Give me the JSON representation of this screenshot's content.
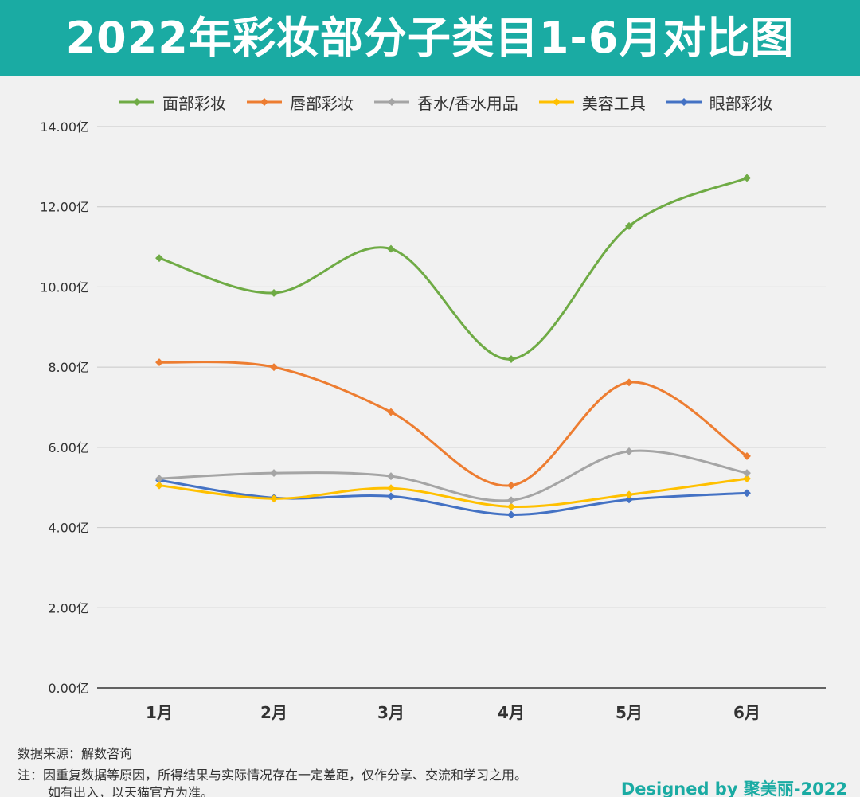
{
  "header": {
    "title": "2022年彩妆部分子类目1-6月对比图"
  },
  "colors": {
    "header_bg": "#1aaba3",
    "accent": "#1aaba3"
  },
  "chart_data": {
    "type": "line",
    "title": "2022年彩妆部分子类目1-6月对比图",
    "xlabel": "",
    "ylabel": "",
    "categories": [
      "1月",
      "2月",
      "3月",
      "4月",
      "5月",
      "6月"
    ],
    "ylim": [
      0,
      14
    ],
    "yticks": [
      0,
      2,
      4,
      6,
      8,
      10,
      12,
      14
    ],
    "ytick_labels": [
      "0.00亿",
      "2.00亿",
      "4.00亿",
      "6.00亿",
      "8.00亿",
      "10.00亿",
      "12.00亿",
      "14.00亿"
    ],
    "grid": true,
    "legend_position": "top",
    "smooth": true,
    "series": [
      {
        "name": "面部彩妆",
        "color": "#6fab45",
        "values": [
          10.72,
          9.85,
          10.95,
          8.2,
          11.52,
          12.72
        ]
      },
      {
        "name": "唇部彩妆",
        "color": "#ed7d31",
        "values": [
          8.12,
          8.0,
          6.88,
          5.05,
          7.62,
          5.78
        ]
      },
      {
        "name": "香水/香水用品",
        "color": "#a5a5a5",
        "values": [
          5.22,
          5.36,
          5.28,
          4.68,
          5.9,
          5.36
        ]
      },
      {
        "name": "美容工具",
        "color": "#ffc000",
        "values": [
          5.05,
          4.72,
          4.98,
          4.52,
          4.82,
          5.22
        ]
      },
      {
        "name": "眼部彩妆",
        "color": "#4472c4",
        "values": [
          5.18,
          4.74,
          4.78,
          4.32,
          4.7,
          4.86
        ]
      }
    ]
  },
  "footer": {
    "source": "数据来源：解数咨询",
    "note1": "注：因重复数据等原因，所得结果与实际情况存在一定差距，仅作分享、交流和学习之用。",
    "note2": "如有出入，以天猫官方为准。",
    "designed_by": "Designed by 聚美丽-2022"
  }
}
